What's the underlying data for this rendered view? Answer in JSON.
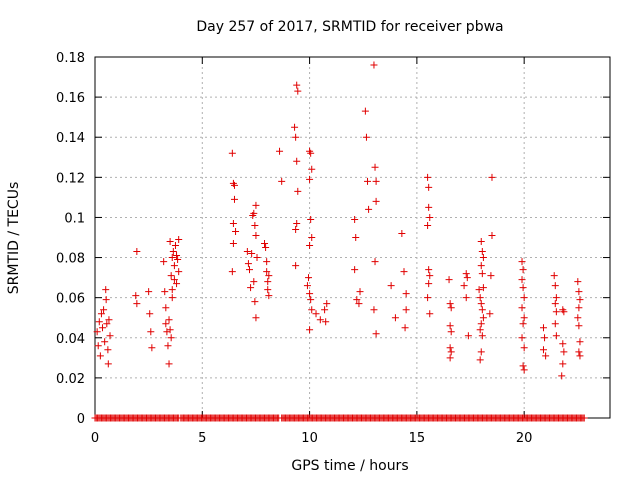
{
  "chart_data": {
    "type": "scatter",
    "title": "Day 257 of 2017, SRMTID for receiver pbwa",
    "xlabel": "GPS time / hours",
    "ylabel": "SRMTID / TECUs",
    "xlim": [
      0,
      24
    ],
    "ylim": [
      0,
      0.18
    ],
    "xticks": [
      0,
      5,
      10,
      15,
      20
    ],
    "yticks": [
      0,
      0.02,
      0.04,
      0.06,
      0.08,
      0.1,
      0.12,
      0.14,
      0.16,
      0.18
    ],
    "ytick_labels": [
      "0",
      "0.02",
      "0.04",
      "0.06",
      "0.08",
      "0.1",
      "0.12",
      "0.14",
      "0.16",
      "0.18"
    ],
    "xtick_labels": [
      "0",
      "5",
      "10",
      "15",
      "20"
    ],
    "grid": true,
    "marker": "+",
    "color": "#e00000",
    "series": [
      {
        "name": "SRMTID",
        "points": [
          [
            0.1,
            0.043
          ],
          [
            0.15,
            0.036
          ],
          [
            0.2,
            0.048
          ],
          [
            0.25,
            0.031
          ],
          [
            0.3,
            0.052
          ],
          [
            0.35,
            0.045
          ],
          [
            0.4,
            0.054
          ],
          [
            0.45,
            0.038
          ],
          [
            0.5,
            0.064
          ],
          [
            0.52,
            0.059
          ],
          [
            0.55,
            0.047
          ],
          [
            0.6,
            0.034
          ],
          [
            0.62,
            0.027
          ],
          [
            0.65,
            0.049
          ],
          [
            0.7,
            0.041
          ],
          [
            1.95,
            0.083
          ],
          [
            1.9,
            0.061
          ],
          [
            1.95,
            0.057
          ],
          [
            2.5,
            0.063
          ],
          [
            2.55,
            0.052
          ],
          [
            2.6,
            0.043
          ],
          [
            2.65,
            0.035
          ],
          [
            3.2,
            0.078
          ],
          [
            3.25,
            0.063
          ],
          [
            3.3,
            0.055
          ],
          [
            3.3,
            0.047
          ],
          [
            3.35,
            0.043
          ],
          [
            3.4,
            0.036
          ],
          [
            3.45,
            0.049
          ],
          [
            3.45,
            0.027
          ],
          [
            3.5,
            0.088
          ],
          [
            3.55,
            0.071
          ],
          [
            3.6,
            0.064
          ],
          [
            3.6,
            0.08
          ],
          [
            3.65,
            0.083
          ],
          [
            3.7,
            0.076
          ],
          [
            3.7,
            0.069
          ],
          [
            3.75,
            0.086
          ],
          [
            3.8,
            0.081
          ],
          [
            3.8,
            0.067
          ],
          [
            3.85,
            0.079
          ],
          [
            3.9,
            0.073
          ],
          [
            3.9,
            0.089
          ],
          [
            3.5,
            0.044
          ],
          [
            3.55,
            0.04
          ],
          [
            3.6,
            0.06
          ],
          [
            6.4,
            0.132
          ],
          [
            6.45,
            0.117
          ],
          [
            6.5,
            0.116
          ],
          [
            6.5,
            0.109
          ],
          [
            6.55,
            0.093
          ],
          [
            6.45,
            0.087
          ],
          [
            6.4,
            0.073
          ],
          [
            6.45,
            0.097
          ],
          [
            7.1,
            0.083
          ],
          [
            7.15,
            0.077
          ],
          [
            7.2,
            0.074
          ],
          [
            7.25,
            0.065
          ],
          [
            7.3,
            0.082
          ],
          [
            7.35,
            0.101
          ],
          [
            7.4,
            0.102
          ],
          [
            7.45,
            0.096
          ],
          [
            7.5,
            0.106
          ],
          [
            7.5,
            0.091
          ],
          [
            7.55,
            0.08
          ],
          [
            7.45,
            0.058
          ],
          [
            7.5,
            0.05
          ],
          [
            7.4,
            0.068
          ],
          [
            7.9,
            0.087
          ],
          [
            7.95,
            0.085
          ],
          [
            8.0,
            0.078
          ],
          [
            8.0,
            0.073
          ],
          [
            8.05,
            0.068
          ],
          [
            8.05,
            0.064
          ],
          [
            8.1,
            0.061
          ],
          [
            8.1,
            0.071
          ],
          [
            8.6,
            0.133
          ],
          [
            8.7,
            0.118
          ],
          [
            9.3,
            0.145
          ],
          [
            9.35,
            0.14
          ],
          [
            9.4,
            0.166
          ],
          [
            9.45,
            0.163
          ],
          [
            9.4,
            0.128
          ],
          [
            9.45,
            0.113
          ],
          [
            9.4,
            0.097
          ],
          [
            9.35,
            0.094
          ],
          [
            9.35,
            0.076
          ],
          [
            10.0,
            0.133
          ],
          [
            10.05,
            0.132
          ],
          [
            10.1,
            0.124
          ],
          [
            10.0,
            0.119
          ],
          [
            10.05,
            0.099
          ],
          [
            10.1,
            0.09
          ],
          [
            10.0,
            0.086
          ],
          [
            9.9,
            0.066
          ],
          [
            10.0,
            0.062
          ],
          [
            10.05,
            0.059
          ],
          [
            10.1,
            0.054
          ],
          [
            10.0,
            0.044
          ],
          [
            9.95,
            0.07
          ],
          [
            10.3,
            0.052
          ],
          [
            10.5,
            0.049
          ],
          [
            10.7,
            0.054
          ],
          [
            10.75,
            0.048
          ],
          [
            10.8,
            0.057
          ],
          [
            12.1,
            0.099
          ],
          [
            12.15,
            0.09
          ],
          [
            12.1,
            0.074
          ],
          [
            12.35,
            0.063
          ],
          [
            12.3,
            0.057
          ],
          [
            12.2,
            0.059
          ],
          [
            12.6,
            0.153
          ],
          [
            12.65,
            0.14
          ],
          [
            12.7,
            0.118
          ],
          [
            12.75,
            0.104
          ],
          [
            13.0,
            0.176
          ],
          [
            13.05,
            0.125
          ],
          [
            13.1,
            0.118
          ],
          [
            13.1,
            0.108
          ],
          [
            13.05,
            0.078
          ],
          [
            13.0,
            0.054
          ],
          [
            13.1,
            0.042
          ],
          [
            13.8,
            0.066
          ],
          [
            14.0,
            0.05
          ],
          [
            14.3,
            0.092
          ],
          [
            14.4,
            0.073
          ],
          [
            14.5,
            0.062
          ],
          [
            14.5,
            0.054
          ],
          [
            14.45,
            0.045
          ],
          [
            15.5,
            0.12
          ],
          [
            15.55,
            0.115
          ],
          [
            15.55,
            0.105
          ],
          [
            15.6,
            0.1
          ],
          [
            15.5,
            0.096
          ],
          [
            15.55,
            0.074
          ],
          [
            15.6,
            0.071
          ],
          [
            15.55,
            0.067
          ],
          [
            15.5,
            0.06
          ],
          [
            15.6,
            0.052
          ],
          [
            16.5,
            0.069
          ],
          [
            16.55,
            0.057
          ],
          [
            16.6,
            0.055
          ],
          [
            16.55,
            0.046
          ],
          [
            16.6,
            0.043
          ],
          [
            16.55,
            0.035
          ],
          [
            16.6,
            0.033
          ],
          [
            16.55,
            0.03
          ],
          [
            17.2,
            0.066
          ],
          [
            17.3,
            0.072
          ],
          [
            17.35,
            0.07
          ],
          [
            17.3,
            0.06
          ],
          [
            17.4,
            0.041
          ],
          [
            17.9,
            0.064
          ],
          [
            17.95,
            0.06
          ],
          [
            18.0,
            0.088
          ],
          [
            18.05,
            0.083
          ],
          [
            18.1,
            0.08
          ],
          [
            18.0,
            0.076
          ],
          [
            18.05,
            0.072
          ],
          [
            18.1,
            0.065
          ],
          [
            18.0,
            0.057
          ],
          [
            18.05,
            0.054
          ],
          [
            18.1,
            0.05
          ],
          [
            18.0,
            0.047
          ],
          [
            17.95,
            0.044
          ],
          [
            18.05,
            0.041
          ],
          [
            18.0,
            0.033
          ],
          [
            17.95,
            0.029
          ],
          [
            18.5,
            0.12
          ],
          [
            18.5,
            0.091
          ],
          [
            18.45,
            0.071
          ],
          [
            18.4,
            0.052
          ],
          [
            19.9,
            0.078
          ],
          [
            19.95,
            0.074
          ],
          [
            19.9,
            0.069
          ],
          [
            19.95,
            0.065
          ],
          [
            20.0,
            0.06
          ],
          [
            19.9,
            0.055
          ],
          [
            20.0,
            0.05
          ],
          [
            19.95,
            0.047
          ],
          [
            19.9,
            0.04
          ],
          [
            20.0,
            0.035
          ],
          [
            19.95,
            0.026
          ],
          [
            20.0,
            0.024
          ],
          [
            20.9,
            0.045
          ],
          [
            20.95,
            0.04
          ],
          [
            20.9,
            0.034
          ],
          [
            21.0,
            0.031
          ],
          [
            21.4,
            0.071
          ],
          [
            21.45,
            0.066
          ],
          [
            21.5,
            0.06
          ],
          [
            21.45,
            0.057
          ],
          [
            21.5,
            0.053
          ],
          [
            21.45,
            0.047
          ],
          [
            21.5,
            0.041
          ],
          [
            21.8,
            0.054
          ],
          [
            21.85,
            0.053
          ],
          [
            21.8,
            0.037
          ],
          [
            21.85,
            0.033
          ],
          [
            21.8,
            0.027
          ],
          [
            21.75,
            0.021
          ],
          [
            22.5,
            0.068
          ],
          [
            22.55,
            0.063
          ],
          [
            22.6,
            0.059
          ],
          [
            22.55,
            0.055
          ],
          [
            22.5,
            0.05
          ],
          [
            22.55,
            0.046
          ],
          [
            22.6,
            0.038
          ],
          [
            22.55,
            0.033
          ],
          [
            22.6,
            0.031
          ]
        ],
        "zero_segments": [
          [
            0.0,
            3.9
          ],
          [
            4.0,
            8.6
          ],
          [
            8.7,
            22.8
          ]
        ]
      }
    ]
  }
}
